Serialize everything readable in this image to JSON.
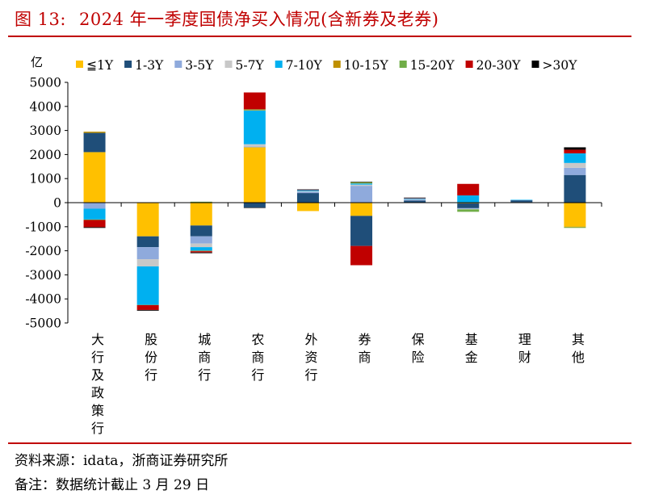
{
  "figure": {
    "label": "图 13:",
    "title": "2024 年一季度国债净买入情况(含新券及老券)"
  },
  "footer": {
    "source": "资料来源：idata，浙商证券研究所",
    "note": "备注：数据统计截止 3 月 29 日"
  },
  "chart_data": {
    "type": "bar",
    "stacked": true,
    "title": "2024 年一季度国债净买入情况(含新券及老券)",
    "ylabel": "亿",
    "ylim": [
      -5000,
      5000
    ],
    "yticks": [
      5000,
      4000,
      3000,
      2000,
      1000,
      0,
      -1000,
      -2000,
      -3000,
      -4000,
      -5000
    ],
    "grid": false,
    "legend_position": "top",
    "categories": [
      "大行及政策行",
      "股份行",
      "城商行",
      "农商行",
      "外资行",
      "券商",
      "保险",
      "基金",
      "理财",
      "其他"
    ],
    "series": [
      {
        "name": "≦1Y",
        "color": "#ffc000",
        "values": [
          2100,
          -1400,
          -950,
          2300,
          -350,
          -550,
          10,
          -30,
          20,
          -1000
        ]
      },
      {
        "name": "1-3Y",
        "color": "#1f4e79",
        "values": [
          800,
          -450,
          -450,
          -200,
          400,
          -1250,
          80,
          -200,
          80,
          1150
        ]
      },
      {
        "name": "3-5Y",
        "color": "#8faadc",
        "values": [
          -250,
          -500,
          -300,
          30,
          50,
          700,
          40,
          -30,
          10,
          300
        ]
      },
      {
        "name": "5-7Y",
        "color": "#c8c8c8",
        "values": [
          0,
          -300,
          -150,
          100,
          30,
          50,
          20,
          -20,
          0,
          200
        ]
      },
      {
        "name": "7-10Y",
        "color": "#00b0f0",
        "values": [
          -450,
          -1600,
          -150,
          1400,
          40,
          50,
          30,
          300,
          10,
          400
        ]
      },
      {
        "name": "10-15Y",
        "color": "#bf9000",
        "values": [
          50,
          0,
          -20,
          20,
          0,
          20,
          0,
          0,
          0,
          -20
        ]
      },
      {
        "name": "15-20Y",
        "color": "#70ad47",
        "values": [
          -20,
          -10,
          40,
          30,
          0,
          30,
          0,
          -100,
          0,
          -30
        ]
      },
      {
        "name": "20-30Y",
        "color": "#c00000",
        "values": [
          -300,
          -200,
          -50,
          700,
          20,
          -800,
          20,
          480,
          0,
          150
        ]
      },
      {
        "name": ">30Y",
        "color": "#000000",
        "values": [
          -30,
          -30,
          -30,
          -20,
          10,
          20,
          10,
          0,
          0,
          100
        ]
      }
    ]
  }
}
